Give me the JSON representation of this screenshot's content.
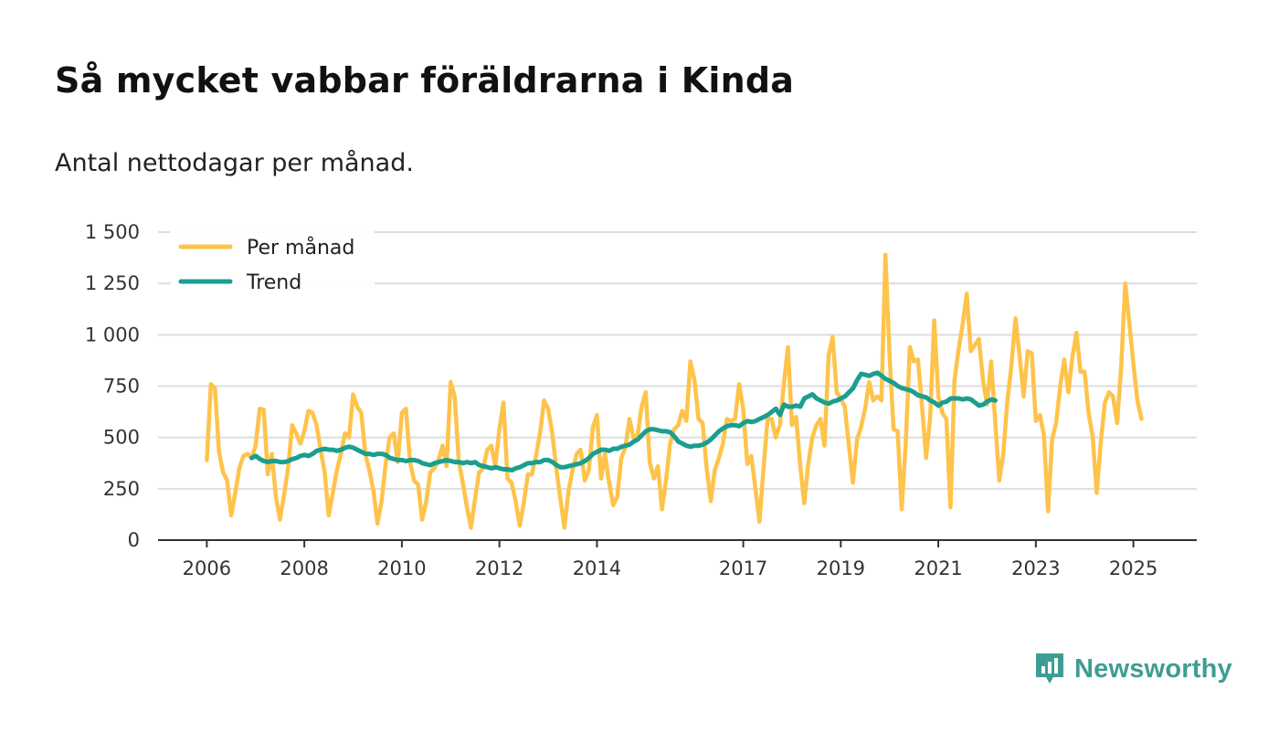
{
  "title": "Så mycket vabbar föräldrarna i Kinda",
  "subtitle": "Antal nettodagar per månad.",
  "brand": {
    "name": "Newsworthy",
    "icon": "bar-chart-icon"
  },
  "colors": {
    "per_month": "#fec34b",
    "trend": "#1a9e8f",
    "grid": "#dddddd",
    "axis": "#333333",
    "brand": "#3e9d93"
  },
  "chart_data": {
    "type": "line",
    "title": "Så mycket vabbar föräldrarna i Kinda",
    "subtitle": "Antal nettodagar per månad.",
    "xlabel": "",
    "ylabel": "",
    "ylim": [
      0,
      1500
    ],
    "xlim": [
      2005.0,
      2026.3
    ],
    "y_ticks": [
      0,
      250,
      500,
      750,
      1000,
      1250,
      1500
    ],
    "y_tick_labels": [
      "0",
      "250",
      "500",
      "750",
      "1 000",
      "1 250",
      "1 500"
    ],
    "x_ticks": [
      2006,
      2008,
      2010,
      2012,
      2014,
      2017,
      2019,
      2021,
      2023,
      2025
    ],
    "x_tick_labels": [
      "2006",
      "2008",
      "2010",
      "2012",
      "2014",
      "2017",
      "2019",
      "2021",
      "2023",
      "2025"
    ],
    "grid": true,
    "legend": {
      "position": "top-left",
      "entries": [
        "Per månad",
        "Trend"
      ]
    },
    "start": 2006.0,
    "step": 0.08333,
    "series": [
      {
        "name": "Per månad",
        "values": [
          390,
          760,
          740,
          430,
          330,
          290,
          120,
          230,
          350,
          410,
          420,
          400,
          460,
          640,
          635,
          320,
          420,
          210,
          100,
          220,
          350,
          560,
          520,
          470,
          530,
          630,
          620,
          560,
          440,
          330,
          120,
          230,
          340,
          420,
          520,
          500,
          710,
          650,
          620,
          420,
          340,
          240,
          80,
          190,
          370,
          500,
          520,
          380,
          620,
          640,
          380,
          290,
          270,
          100,
          190,
          330,
          350,
          390,
          460,
          360,
          770,
          700,
          380,
          280,
          160,
          60,
          200,
          330,
          350,
          440,
          460,
          360,
          540,
          670,
          300,
          280,
          190,
          70,
          180,
          320,
          320,
          410,
          520,
          680,
          640,
          520,
          350,
          200,
          60,
          240,
          340,
          420,
          440,
          290,
          340,
          550,
          610,
          300,
          420,
          280,
          170,
          210,
          400,
          450,
          590,
          500,
          510,
          650,
          720,
          380,
          300,
          360,
          150,
          290,
          470,
          540,
          560,
          630,
          580,
          870,
          780,
          590,
          570,
          350,
          190,
          340,
          400,
          470,
          590,
          580,
          590,
          760,
          640,
          370,
          410,
          250,
          90,
          350,
          590,
          590,
          500,
          560,
          760,
          940,
          560,
          600,
          370,
          180,
          370,
          500,
          560,
          590,
          460,
          900,
          990,
          720,
          690,
          650,
          460,
          280,
          490,
          550,
          640,
          770,
          680,
          700,
          680,
          1390,
          900,
          540,
          530,
          150,
          480,
          940,
          870,
          880,
          650,
          400,
          600,
          1070,
          700,
          620,
          590,
          160,
          780,
          930,
          1050,
          1200,
          920,
          950,
          980,
          780,
          660,
          870,
          580,
          290,
          420,
          680,
          850,
          1080,
          900,
          700,
          920,
          910,
          580,
          610,
          510,
          140,
          490,
          570,
          750,
          880,
          720,
          890,
          1010,
          820,
          820,
          620,
          500,
          230,
          480,
          670,
          720,
          700,
          570,
          840,
          1250,
          1060,
          860,
          680,
          590
        ]
      },
      {
        "name": "Trend",
        "start": 2006.92,
        "values": [
          400,
          410,
          395,
          385,
          380,
          385,
          385,
          380,
          380,
          385,
          395,
          400,
          410,
          415,
          410,
          420,
          435,
          440,
          445,
          440,
          440,
          435,
          440,
          450,
          455,
          450,
          440,
          430,
          420,
          420,
          415,
          420,
          420,
          415,
          400,
          395,
          390,
          390,
          385,
          390,
          390,
          385,
          375,
          370,
          365,
          375,
          380,
          385,
          390,
          385,
          380,
          380,
          375,
          380,
          375,
          380,
          365,
          360,
          355,
          350,
          355,
          350,
          345,
          345,
          340,
          350,
          355,
          365,
          375,
          375,
          380,
          380,
          390,
          390,
          380,
          365,
          355,
          355,
          360,
          365,
          370,
          375,
          385,
          400,
          420,
          430,
          440,
          440,
          435,
          445,
          445,
          455,
          460,
          465,
          480,
          490,
          510,
          530,
          540,
          540,
          535,
          530,
          530,
          525,
          505,
          480,
          470,
          460,
          455,
          460,
          460,
          465,
          475,
          490,
          510,
          530,
          545,
          555,
          560,
          560,
          555,
          570,
          580,
          575,
          580,
          590,
          600,
          610,
          625,
          640,
          610,
          660,
          650,
          650,
          655,
          650,
          690,
          700,
          710,
          690,
          680,
          670,
          665,
          675,
          680,
          690,
          700,
          720,
          740,
          780,
          810,
          805,
          800,
          810,
          815,
          800,
          785,
          775,
          765,
          750,
          740,
          735,
          730,
          720,
          705,
          700,
          695,
          680,
          670,
          655,
          670,
          675,
          690,
          690,
          690,
          685,
          690,
          685,
          670,
          655,
          660,
          675,
          685,
          680
        ]
      }
    ]
  }
}
